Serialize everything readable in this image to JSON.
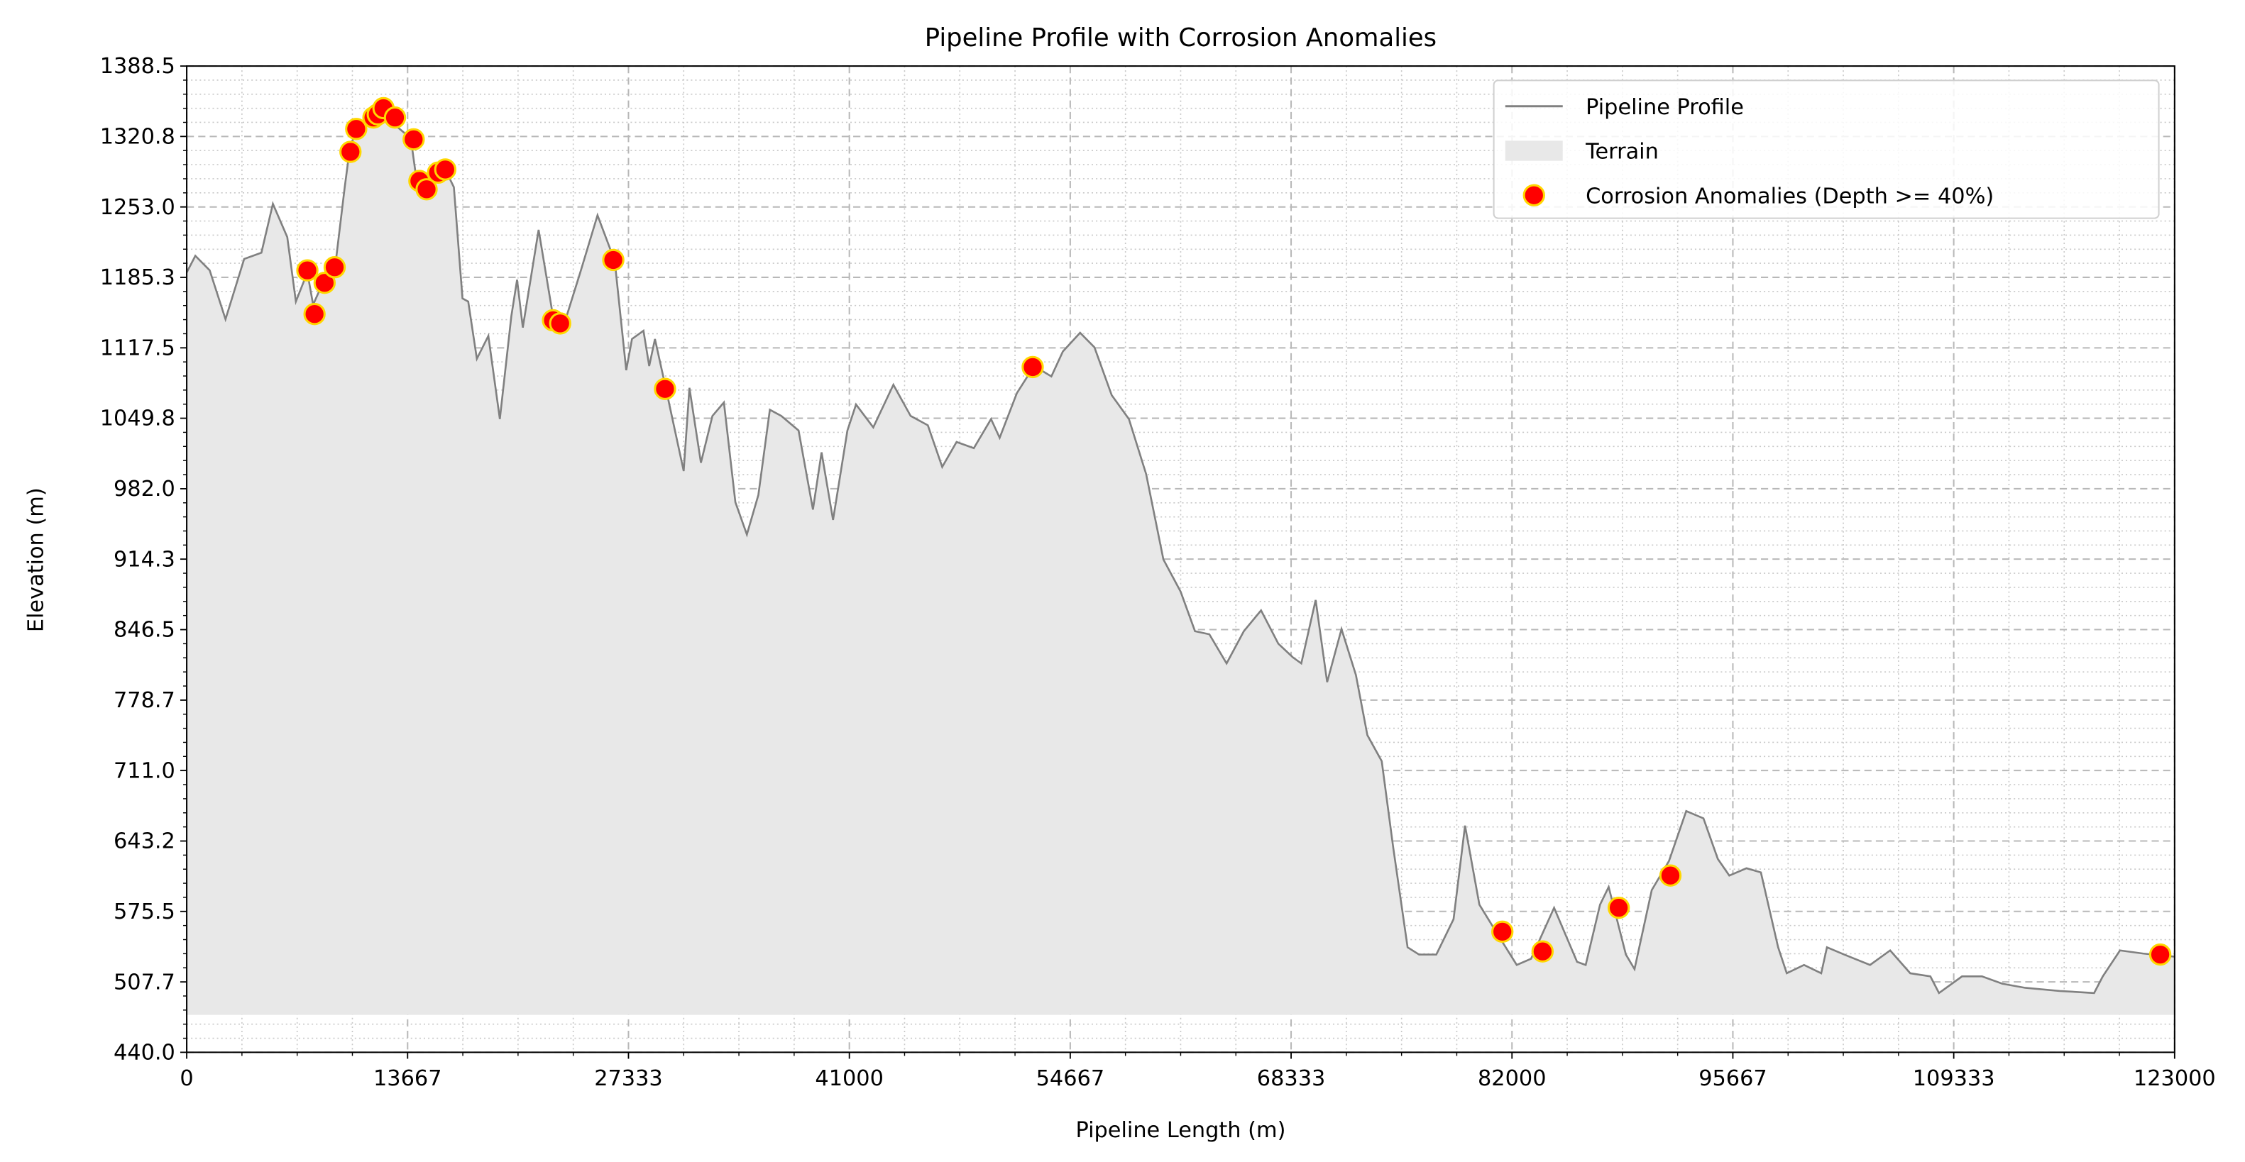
{
  "chart_data": {
    "type": "line",
    "title": "Pipeline Profile with Corrosion Anomalies",
    "x_label": "Pipeline Length (m)",
    "y_label": "Elevation (m)",
    "xlim": [
      0,
      123000
    ],
    "ylim": [
      440,
      1388.5
    ],
    "xticks": [
      0,
      13667,
      27333,
      41000,
      54667,
      68333,
      82000,
      95667,
      109333,
      123000
    ],
    "yticks": [
      {
        "value": 440,
        "label": "440.0"
      },
      507.7,
      575.5,
      643.2,
      {
        "value": 711,
        "label": "711.0"
      },
      778.7,
      846.5,
      914.3,
      {
        "value": 982,
        "label": "982.0"
      },
      1049.8,
      1117.5,
      1185.3,
      {
        "value": 1253,
        "label": "1253.0"
      },
      1320.8,
      1388.5
    ],
    "grid": true,
    "minor_grid": true,
    "legend": "upper right",
    "x": [
      0,
      533,
      1422,
      2400,
      3555,
      4621,
      5332,
      6221,
      6754,
      7465,
      7821,
      8709,
      9242,
      9776,
      10131,
      11198,
      12264,
      12797,
      13864,
      14219,
      14752,
      15286,
      15997,
      16530,
      17063,
      17418,
      17952,
      18663,
      19374,
      20085,
      20440,
      20796,
      21773,
      22662,
      23284,
      24350,
      25417,
      26483,
      27194,
      27550,
      28261,
      28616,
      28972,
      29682,
      30749,
      31105,
      31816,
      32527,
      33238,
      33948,
      34659,
      35370,
      36081,
      36792,
      37858,
      38747,
      39280,
      39991,
      40880,
      41413,
      42480,
      43724,
      44791,
      45857,
      46746,
      47634,
      48701,
      49767,
      50300,
      51367,
      52433,
      53499,
      54210,
      55277,
      56165,
      57232,
      58298,
      59365,
      60431,
      61498,
      62386,
      63275,
      64341,
      65408,
      66474,
      67541,
      68430,
      68963,
      69852,
      70563,
      71452,
      72341,
      73052,
      73940,
      74651,
      75540,
      76251,
      77317,
      78384,
      79095,
      79983,
      81050,
      82294,
      83183,
      84605,
      86027,
      86560,
      87449,
      87982,
      89048,
      89582,
      90647,
      91714,
      92780,
      93847,
      94735,
      95446,
      96512,
      97401,
      98467,
      99001,
      100067,
      101133,
      101489,
      102555,
      104155,
      105399,
      106644,
      107888,
      108421,
      109844,
      111088,
      112332,
      113754,
      115887,
      118019,
      118553,
      119619,
      121041,
      123000
    ],
    "series": [
      {
        "name": "Pipeline Profile",
        "color": "#808080",
        "values": [
          1190,
          1206,
          1192,
          1145,
          1203,
          1209,
          1256,
          1224,
          1162,
          1190,
          1159,
          1190,
          1203,
          1272,
          1314,
          1339,
          1347,
          1333,
          1319,
          1279,
          1272,
          1289,
          1289,
          1272,
          1165,
          1162,
          1107,
          1129,
          1049,
          1148,
          1183,
          1137,
          1231,
          1148,
          1137,
          1190,
          1245,
          1201,
          1096,
          1126,
          1134,
          1100,
          1126,
          1076,
          999,
          1079,
          1007,
          1052,
          1065,
          969,
          938,
          976,
          1058,
          1052,
          1038,
          962,
          1017,
          952,
          1038,
          1063,
          1041,
          1082,
          1052,
          1043,
          1003,
          1027,
          1021,
          1049,
          1031,
          1074,
          1100,
          1090,
          1114,
          1132,
          1118,
          1072,
          1049,
          996,
          914,
          883,
          845,
          842,
          814,
          845,
          865,
          833,
          820,
          814,
          875,
          796,
          847,
          803,
          745,
          720,
          637,
          541,
          534,
          534,
          568,
          658,
          582,
          555,
          524,
          530,
          579,
          527,
          524,
          582,
          599,
          534,
          520,
          596,
          624,
          672,
          665,
          626,
          610,
          617,
          613,
          541,
          516,
          524,
          516,
          541,
          534,
          524,
          538,
          516,
          513,
          497,
          513,
          513,
          506,
          502,
          499,
          497,
          513,
          538,
          535,
          532
        ]
      }
    ],
    "terrain": {
      "name": "Terrain",
      "color": "#e8e8e8",
      "base": 476
    },
    "anomalies": {
      "name": "Corrosion Anomalies (Depth >= 40%)",
      "color": "#ff0000",
      "edgecolor": "#ffd700",
      "x": [
        7465,
        7909,
        8532,
        9154,
        10131,
        10487,
        11553,
        11820,
        12175,
        12886,
        14041,
        14397,
        14841,
        15552,
        15997,
        22662,
        23106,
        26394,
        29594,
        52344,
        81405,
        83894,
        88604,
        91803,
        122111
      ],
      "values": [
        1192,
        1150,
        1180,
        1195,
        1306,
        1328,
        1339,
        1342,
        1348,
        1339,
        1318,
        1278,
        1270,
        1286,
        1289,
        1144,
        1141,
        1202,
        1078,
        1099,
        556,
        537,
        579,
        610,
        534
      ]
    }
  }
}
